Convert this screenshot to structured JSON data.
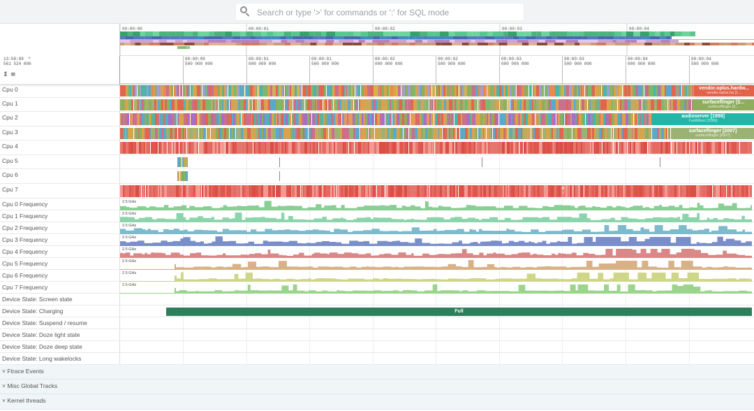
{
  "search": {
    "placeholder": "Search or type '>' for commands or ':' for SQL mode",
    "icon": "search-icon"
  },
  "overview": {
    "ticks": [
      "00:00:00",
      "00:00:01",
      "00:00:02",
      "00:00:03",
      "00:00:04"
    ]
  },
  "ruler": {
    "time": "13:58:08",
    "ns": "561 524 000",
    "plus": "+",
    "ticks": [
      {
        "t": "00:00:00",
        "ns": "500 000 000"
      },
      {
        "t": "00:00:01",
        "ns": "000 000 000"
      },
      {
        "t": "00:00:01",
        "ns": "500 000 000"
      },
      {
        "t": "00:00:02",
        "ns": "000 000 000"
      },
      {
        "t": "00:00:02",
        "ns": "500 000 000"
      },
      {
        "t": "00:00:03",
        "ns": "000 000 000"
      },
      {
        "t": "00:00:03",
        "ns": "500 000 000"
      },
      {
        "t": "00:00:04",
        "ns": "000 000 000"
      },
      {
        "t": "00:00:04",
        "ns": "500 000 000"
      }
    ]
  },
  "cpus": [
    {
      "name": "Cpu 0",
      "slice": {
        "title": "vendor.oplus.hardw...",
        "sub": "vendor.oplus.ha [1...",
        "color": "#e2634a"
      }
    },
    {
      "name": "Cpu 1",
      "slice": {
        "title": "surfaceflinger [2...",
        "sub": "surfaceflinger [2...",
        "color": "#8fad5e"
      }
    },
    {
      "name": "Cpu 2",
      "slice": {
        "title": "audioserver [1998]",
        "sub": "FastMixer [3386]",
        "color": "#21b6a8"
      }
    },
    {
      "name": "Cpu 3",
      "slice": {
        "title": "surfaceflinger [2007]",
        "sub": "surfaceflinger [2007]",
        "color": "#9cb273"
      }
    },
    {
      "name": "Cpu 4"
    },
    {
      "name": "Cpu 5"
    },
    {
      "name": "Cpu 6"
    },
    {
      "name": "Cpu 7",
      "marker": {
        "title": "c",
        "sub": "c"
      }
    }
  ],
  "freq_tracks": [
    {
      "name": "Cpu 0 Frequency",
      "label": "2.5 GHz",
      "color": "#7dc98a"
    },
    {
      "name": "Cpu 1 Frequency",
      "label": "2.5 GHz",
      "color": "#7fcfa2"
    },
    {
      "name": "Cpu 2 Frequency",
      "label": "2.5 GHz",
      "color": "#6fb4c6"
    },
    {
      "name": "Cpu 3 Frequency",
      "label": "2.5 GHz",
      "color": "#6b82c4"
    },
    {
      "name": "Cpu 4 Frequency",
      "label": "2.5 GHz",
      "color": "#d57a7a"
    },
    {
      "name": "Cpu 5 Frequency",
      "label": "2.5 GHz",
      "color": "#d4a97a"
    },
    {
      "name": "Cpu 6 Frequency",
      "label": "2.5 GHz",
      "color": "#c9d27a"
    },
    {
      "name": "Cpu 7 Frequency",
      "label": "2.5 GHz",
      "color": "#8fd07e"
    }
  ],
  "device_tracks": [
    {
      "name": "Device State: Screen state"
    },
    {
      "name": "Device State: Charging",
      "slice": "Full",
      "color": "#2e7d5b"
    },
    {
      "name": "Device State: Suspend / resume"
    },
    {
      "name": "Device State: Doze light state"
    },
    {
      "name": "Device State: Doze deep state"
    },
    {
      "name": "Device State: Long wakelocks"
    }
  ],
  "groups": [
    {
      "name": "Ftrace Events",
      "icon": "chevron-down-icon"
    },
    {
      "name": "Misc Global Tracks",
      "icon": "chevron-down-icon"
    },
    {
      "name": "Kernel threads",
      "icon": "chevron-down-icon"
    }
  ]
}
